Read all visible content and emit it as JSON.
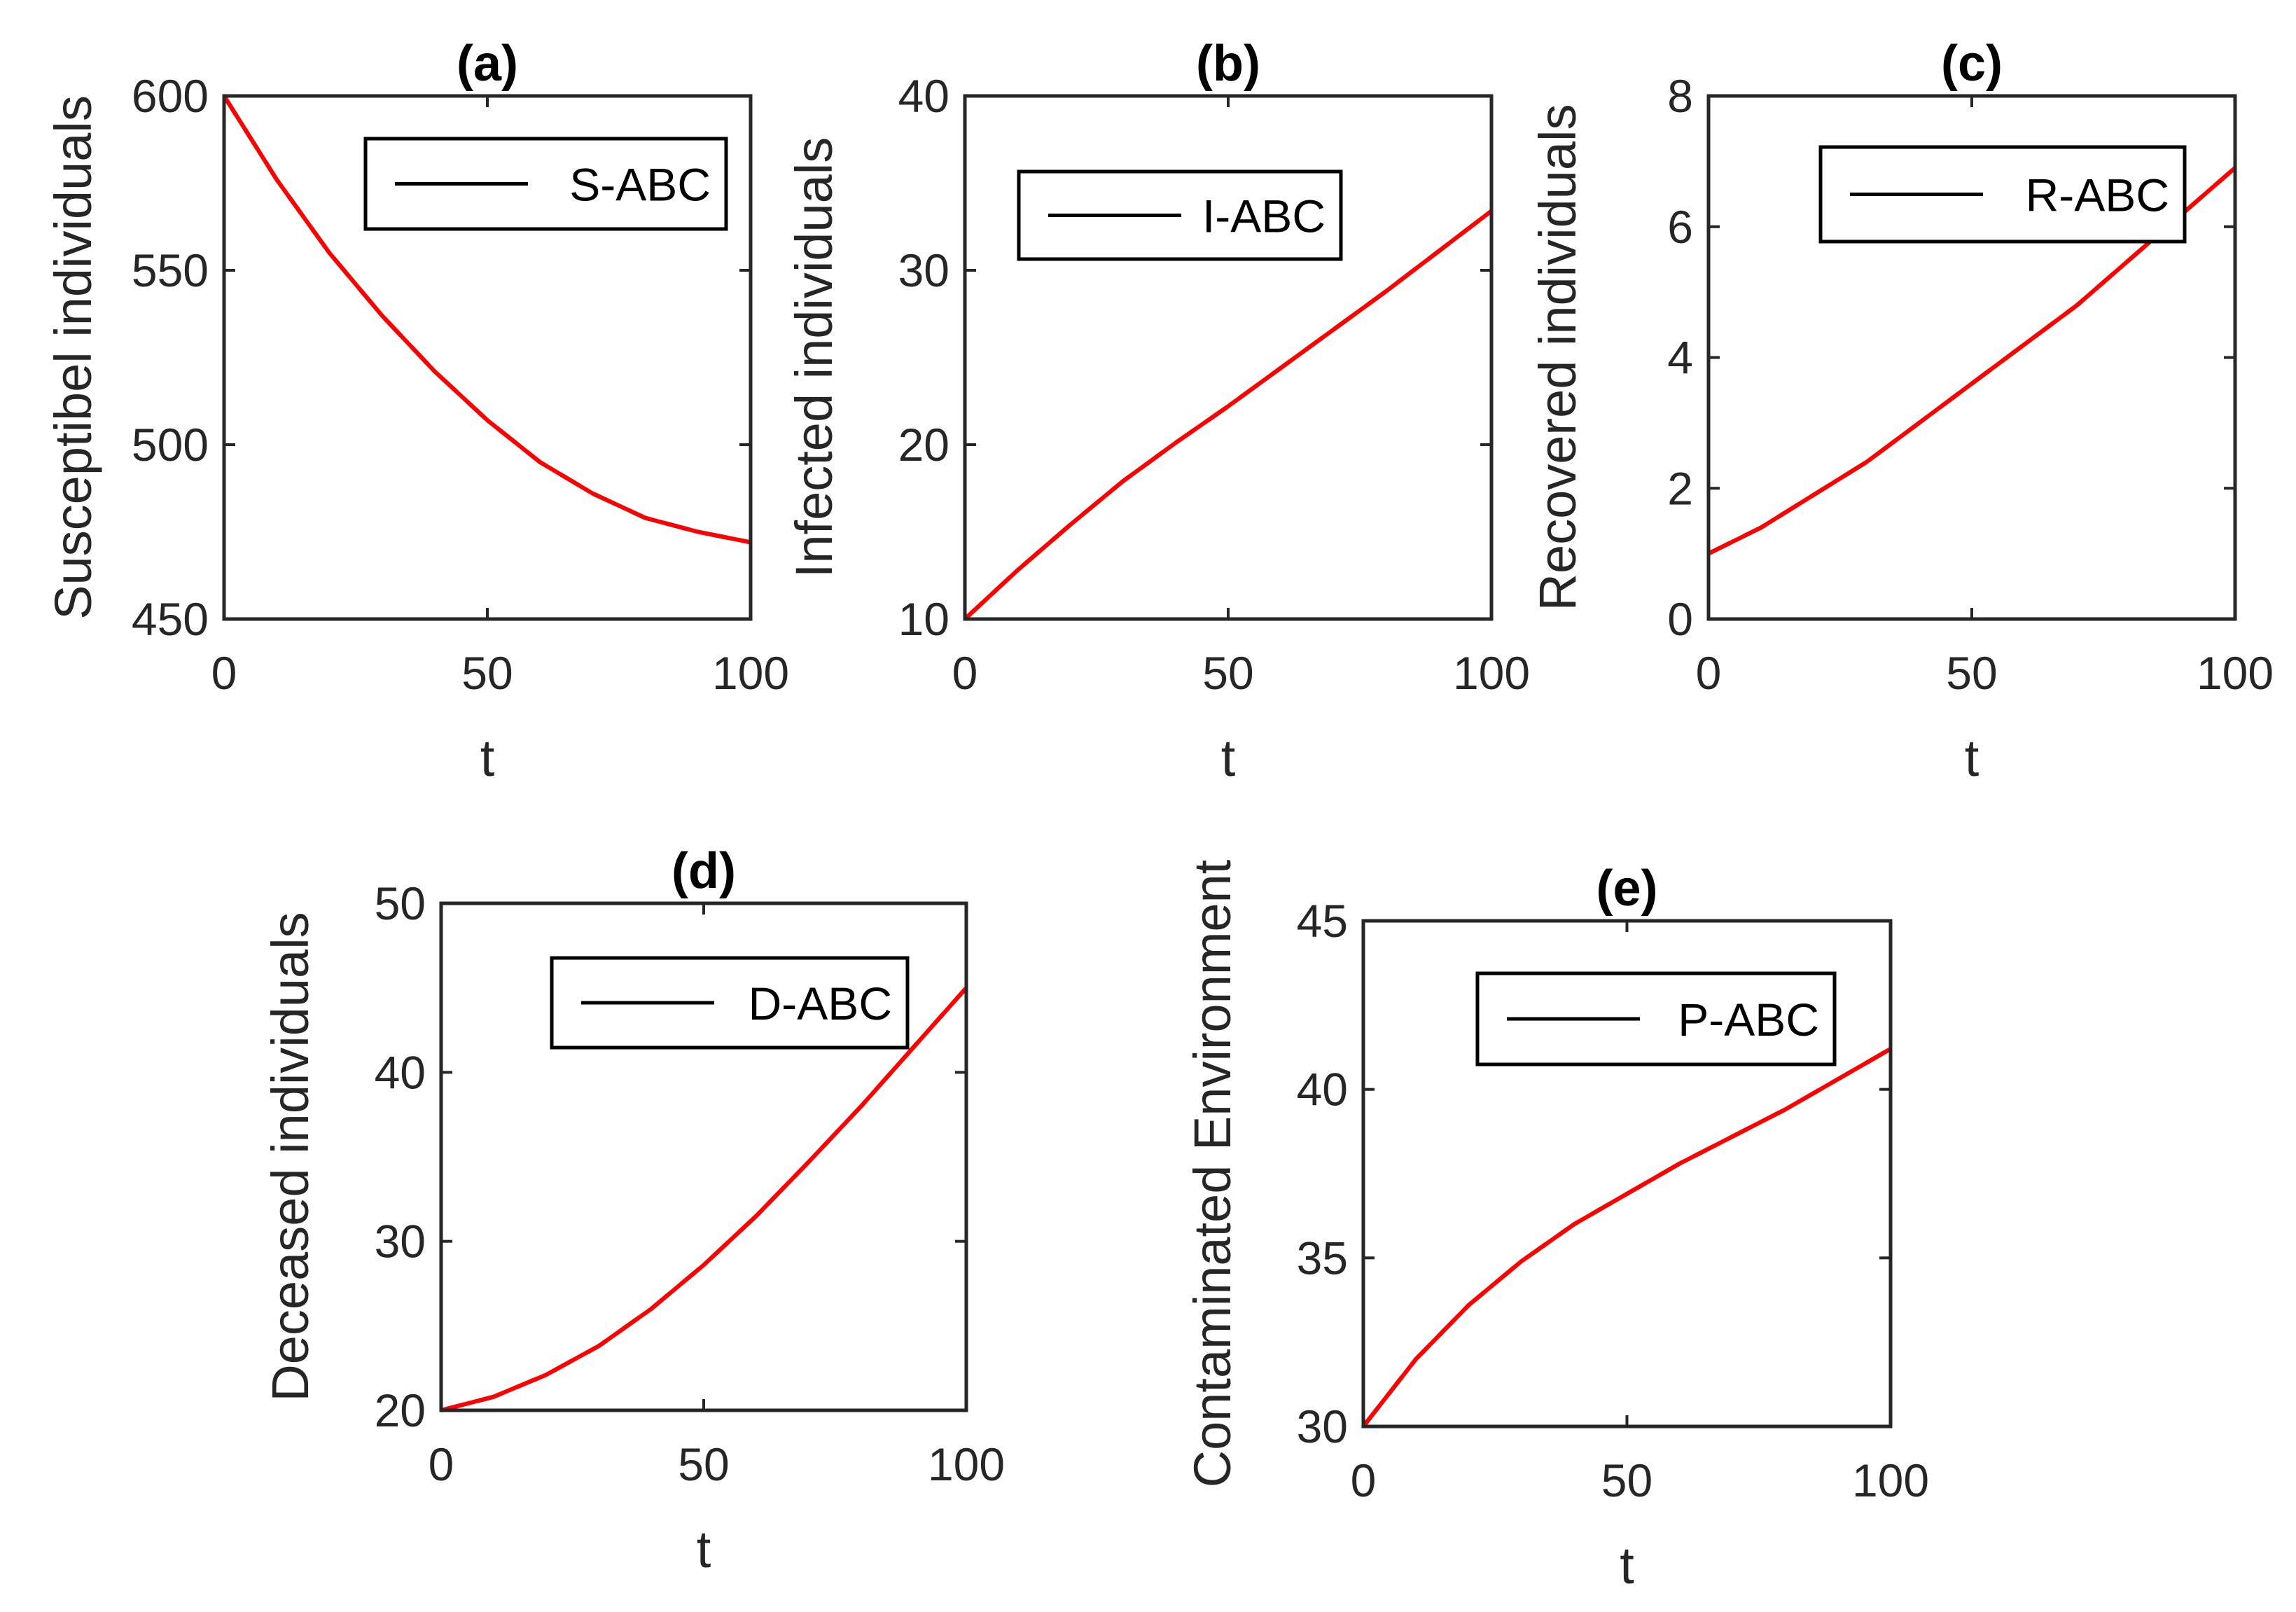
{
  "chart_data": [
    {
      "type": "line",
      "title": "(a)",
      "xlabel": "t",
      "ylabel": "Susceptibel individuals",
      "xlim": [
        0,
        100
      ],
      "ylim": [
        450,
        600
      ],
      "xticks": [
        0,
        50,
        100
      ],
      "yticks": [
        450,
        500,
        550,
        600
      ],
      "legend": [
        "S-ABC"
      ],
      "legend_position": "top-right",
      "series": [
        {
          "name": "S-ABC",
          "color": "#000000",
          "style": "dashed",
          "x": [
            0,
            10,
            20,
            30,
            40,
            50,
            60,
            70,
            80,
            90,
            100
          ],
          "y": [
            600,
            576,
            555,
            537,
            521,
            507,
            495,
            486,
            479,
            475,
            472
          ]
        },
        {
          "name": "",
          "color": "#ff0000",
          "style": "solid",
          "x": [
            0,
            10,
            20,
            30,
            40,
            50,
            60,
            70,
            80,
            90,
            100
          ],
          "y": [
            600,
            576,
            555,
            537,
            521,
            507,
            495,
            486,
            479,
            475,
            472
          ]
        }
      ]
    },
    {
      "type": "line",
      "title": "(b)",
      "xlabel": "t",
      "ylabel": "Infected individuals",
      "xlim": [
        0,
        100
      ],
      "ylim": [
        10,
        40
      ],
      "xticks": [
        0,
        50,
        100
      ],
      "yticks": [
        10,
        20,
        30,
        40
      ],
      "legend": [
        "I-ABC"
      ],
      "legend_position": "top-left",
      "series": [
        {
          "name": "I-ABC",
          "color": "#000000",
          "style": "dashed",
          "x": [
            0,
            10,
            20,
            30,
            40,
            50,
            60,
            70,
            80,
            90,
            100
          ],
          "y": [
            10,
            12.8,
            15.4,
            17.9,
            20.1,
            22.2,
            24.4,
            26.6,
            28.8,
            31.1,
            33.4
          ]
        },
        {
          "name": "",
          "color": "#ff0000",
          "style": "solid",
          "x": [
            0,
            10,
            20,
            30,
            40,
            50,
            60,
            70,
            80,
            90,
            100
          ],
          "y": [
            10,
            12.8,
            15.4,
            17.9,
            20.1,
            22.2,
            24.4,
            26.6,
            28.8,
            31.1,
            33.4
          ]
        }
      ]
    },
    {
      "type": "line",
      "title": "(c)",
      "xlabel": "t",
      "ylabel": "Recovered individuals",
      "xlim": [
        0,
        100
      ],
      "ylim": [
        0,
        8
      ],
      "xticks": [
        0,
        50,
        100
      ],
      "yticks": [
        0,
        2,
        4,
        6,
        8
      ],
      "legend": [
        "R-ABC"
      ],
      "legend_position": "top-right",
      "series": [
        {
          "name": "R-ABC",
          "color": "#000000",
          "style": "dashed",
          "x": [
            0,
            10,
            20,
            30,
            40,
            50,
            60,
            70,
            80,
            90,
            100
          ],
          "y": [
            1.0,
            1.4,
            1.9,
            2.4,
            3.0,
            3.6,
            4.2,
            4.8,
            5.5,
            6.2,
            6.9
          ]
        },
        {
          "name": "",
          "color": "#ff0000",
          "style": "solid",
          "x": [
            0,
            10,
            20,
            30,
            40,
            50,
            60,
            70,
            80,
            90,
            100
          ],
          "y": [
            1.0,
            1.4,
            1.9,
            2.4,
            3.0,
            3.6,
            4.2,
            4.8,
            5.5,
            6.2,
            6.9
          ]
        }
      ]
    },
    {
      "type": "line",
      "title": "(d)",
      "xlabel": "t",
      "ylabel": "Deceased individuals",
      "xlim": [
        0,
        100
      ],
      "ylim": [
        20,
        50
      ],
      "xticks": [
        0,
        50,
        100
      ],
      "yticks": [
        20,
        30,
        40,
        50
      ],
      "legend": [
        "D-ABC"
      ],
      "legend_position": "top-right",
      "series": [
        {
          "name": "D-ABC",
          "color": "#000000",
          "style": "dashed",
          "x": [
            0,
            10,
            20,
            30,
            40,
            50,
            60,
            70,
            80,
            90,
            100
          ],
          "y": [
            20,
            20.8,
            22.1,
            23.8,
            26.0,
            28.6,
            31.5,
            34.7,
            38.0,
            41.5,
            45.0
          ]
        },
        {
          "name": "",
          "color": "#ff0000",
          "style": "solid",
          "x": [
            0,
            10,
            20,
            30,
            40,
            50,
            60,
            70,
            80,
            90,
            100
          ],
          "y": [
            20,
            20.8,
            22.1,
            23.8,
            26.0,
            28.6,
            31.5,
            34.7,
            38.0,
            41.5,
            45.0
          ]
        }
      ]
    },
    {
      "type": "line",
      "title": "(e)",
      "xlabel": "t",
      "ylabel": "Contaminated Environment",
      "xlim": [
        0,
        100
      ],
      "ylim": [
        30,
        45
      ],
      "xticks": [
        0,
        50,
        100
      ],
      "yticks": [
        30,
        35,
        40,
        45
      ],
      "legend": [
        "P-ABC"
      ],
      "legend_position": "top-right",
      "series": [
        {
          "name": "P-ABC",
          "color": "#000000",
          "style": "dashed",
          "x": [
            0,
            10,
            20,
            30,
            40,
            50,
            60,
            70,
            80,
            90,
            100
          ],
          "y": [
            30,
            32.0,
            33.6,
            34.9,
            36.0,
            36.9,
            37.8,
            38.6,
            39.4,
            40.3,
            41.2
          ]
        },
        {
          "name": "",
          "color": "#ff0000",
          "style": "solid",
          "x": [
            0,
            10,
            20,
            30,
            40,
            50,
            60,
            70,
            80,
            90,
            100
          ],
          "y": [
            30,
            32.0,
            33.6,
            34.9,
            36.0,
            36.9,
            37.8,
            38.6,
            39.4,
            40.3,
            41.2
          ]
        }
      ]
    }
  ]
}
